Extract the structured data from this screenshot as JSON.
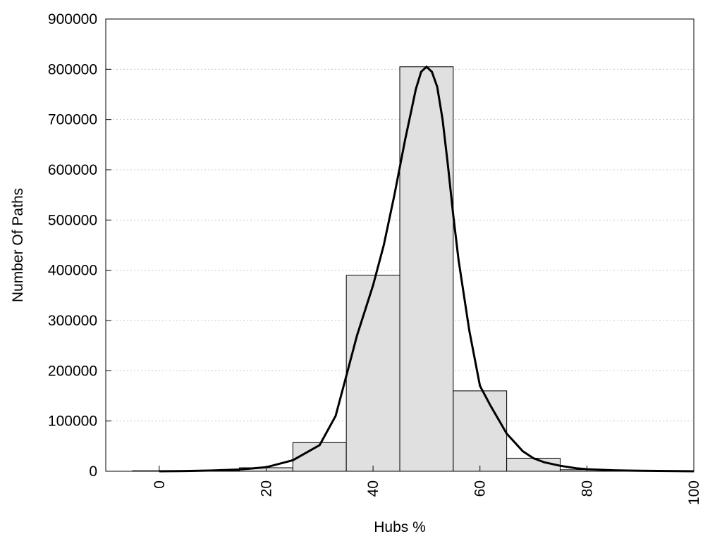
{
  "chart_data": {
    "type": "bar",
    "title": "",
    "xlabel": "Hubs %",
    "ylabel": "Number Of Paths",
    "xlim": [
      -10,
      100
    ],
    "ylim": [
      0,
      900000
    ],
    "x_ticks": [
      0,
      20,
      40,
      60,
      80,
      100
    ],
    "y_ticks": [
      0,
      100000,
      200000,
      300000,
      400000,
      500000,
      600000,
      700000,
      800000,
      900000
    ],
    "grid": "horizontal dotted",
    "bin_width": 10,
    "bins": [
      {
        "center": 0,
        "value": 1000
      },
      {
        "center": 10,
        "value": 1500
      },
      {
        "center": 20,
        "value": 7000
      },
      {
        "center": 30,
        "value": 57000
      },
      {
        "center": 40,
        "value": 390000
      },
      {
        "center": 50,
        "value": 805000
      },
      {
        "center": 60,
        "value": 160000
      },
      {
        "center": 70,
        "value": 26000
      },
      {
        "center": 80,
        "value": 3000
      },
      {
        "center": 90,
        "value": 1000
      }
    ],
    "curve": {
      "x": [
        0,
        5,
        10,
        15,
        20,
        25,
        30,
        33,
        35,
        37,
        40,
        42,
        44,
        46,
        47,
        48,
        49,
        50,
        51,
        52,
        53,
        54,
        55,
        56,
        58,
        60,
        62,
        65,
        68,
        70,
        72,
        75,
        78,
        80,
        85,
        90,
        95,
        100
      ],
      "y": [
        0,
        500,
        1500,
        3500,
        8000,
        22000,
        52000,
        110000,
        190000,
        270000,
        370000,
        450000,
        550000,
        660000,
        710000,
        760000,
        795000,
        805000,
        795000,
        765000,
        700000,
        610000,
        510000,
        420000,
        280000,
        170000,
        130000,
        75000,
        40000,
        26000,
        18000,
        11000,
        6000,
        4000,
        2000,
        1000,
        500,
        0
      ]
    },
    "colors": {
      "bar_fill": "#e0e0e0",
      "bar_stroke": "#000000",
      "curve": "#000000",
      "grid": "#c8c8c8"
    }
  }
}
